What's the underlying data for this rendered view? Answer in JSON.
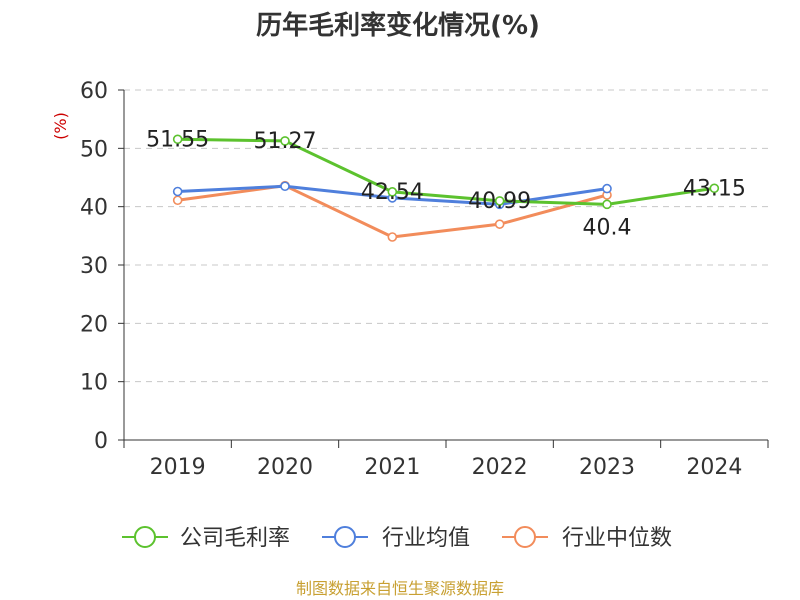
{
  "chart_data": {
    "type": "line",
    "title": "历年毛利率变化情况(%)",
    "ylabel": "(%)",
    "xlabel": "",
    "categories": [
      "2019",
      "2020",
      "2021",
      "2022",
      "2023",
      "2024"
    ],
    "ylim": [
      0,
      60
    ],
    "yticks": [
      0,
      10,
      20,
      30,
      40,
      50,
      60
    ],
    "grid": "horizontal-dashed",
    "legend_position": "bottom",
    "series": [
      {
        "name": "公司毛利率",
        "color": "#5cc22e",
        "values": [
          51.55,
          51.27,
          42.54,
          40.99,
          40.4,
          43.15
        ],
        "data_labels": [
          "51.55",
          "51.27",
          "42.54",
          "40.99",
          "40.4",
          "43.15"
        ]
      },
      {
        "name": "行业均值",
        "color": "#4f7fdc",
        "values": [
          42.6,
          43.5,
          41.5,
          40.4,
          43.1,
          null
        ]
      },
      {
        "name": "行业中位数",
        "color": "#f28c5b",
        "values": [
          41.1,
          43.6,
          34.8,
          37.0,
          42.0,
          null
        ]
      }
    ]
  },
  "source": "制图数据来自恒生聚源数据库"
}
